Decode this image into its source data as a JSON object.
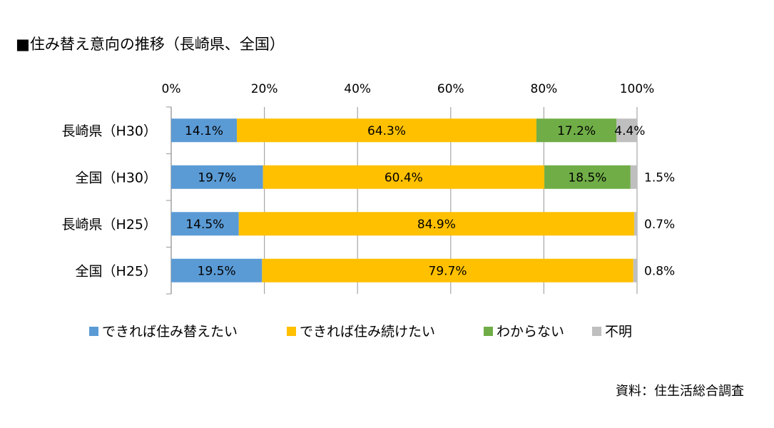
{
  "title": "■住み替え意向の推移（長崎県、全国）",
  "source": "資料：住生活総合調査",
  "colors": {
    "series": [
      "#5b9bd5",
      "#ffc000",
      "#70ad47",
      "#bfbfbf"
    ],
    "axis": "#a6a6a6"
  },
  "chart_data": {
    "type": "bar",
    "orientation": "horizontal",
    "stacked": true,
    "percent_stacked": true,
    "categories": [
      "長崎県（H30）",
      "全国（H30）",
      "長崎県（H25）",
      "全国（H25）"
    ],
    "series": [
      {
        "name": "できれば住み替えたい",
        "values": [
          14.1,
          19.7,
          14.5,
          19.5
        ],
        "labels": [
          "14.1%",
          "19.7%",
          "14.5%",
          "19.5%"
        ]
      },
      {
        "name": "できれば住み続けたい",
        "values": [
          64.3,
          60.4,
          84.9,
          79.7
        ],
        "labels": [
          "64.3%",
          "60.4%",
          "84.9%",
          "79.7%"
        ]
      },
      {
        "name": "わからない",
        "values": [
          17.2,
          18.5,
          0,
          0
        ],
        "labels": [
          "17.2%",
          "18.5%",
          "",
          ""
        ]
      },
      {
        "name": "不明",
        "values": [
          4.4,
          1.5,
          0.7,
          0.8
        ],
        "labels": [
          "4.4%",
          "1.5%",
          "0.7%",
          "0.8%"
        ]
      }
    ],
    "xlim": [
      0,
      100
    ],
    "ticks": [
      "0%",
      "20%",
      "40%",
      "60%",
      "80%",
      "100%"
    ],
    "grid": true,
    "legend_position": "bottom"
  }
}
